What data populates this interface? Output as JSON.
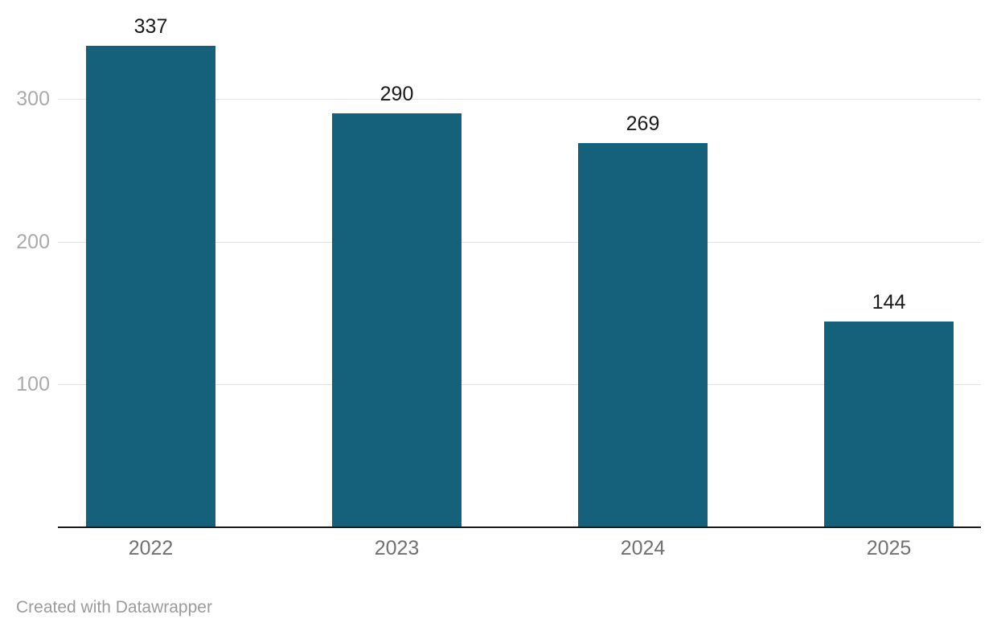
{
  "chart_data": {
    "type": "bar",
    "categories": [
      "2022",
      "2023",
      "2024",
      "2025"
    ],
    "values": [
      337,
      290,
      269,
      144
    ],
    "title": "",
    "xlabel": "",
    "ylabel": "",
    "ylim": [
      0,
      370
    ],
    "yticks": [
      100,
      200,
      300
    ],
    "grid": true,
    "legend": "none",
    "value_labels_shown": true,
    "colors": {
      "bar": "#15617c",
      "gridline": "#e2e2e2",
      "axis_line": "#1a1a1a",
      "value_label": "#1a1a1a",
      "x_tick_label": "#707070",
      "y_tick_label": "#aaaaaa",
      "footer_text": "#9b9b9b",
      "background": "#ffffff"
    }
  },
  "footer": {
    "attribution": "Created with Datawrapper"
  }
}
